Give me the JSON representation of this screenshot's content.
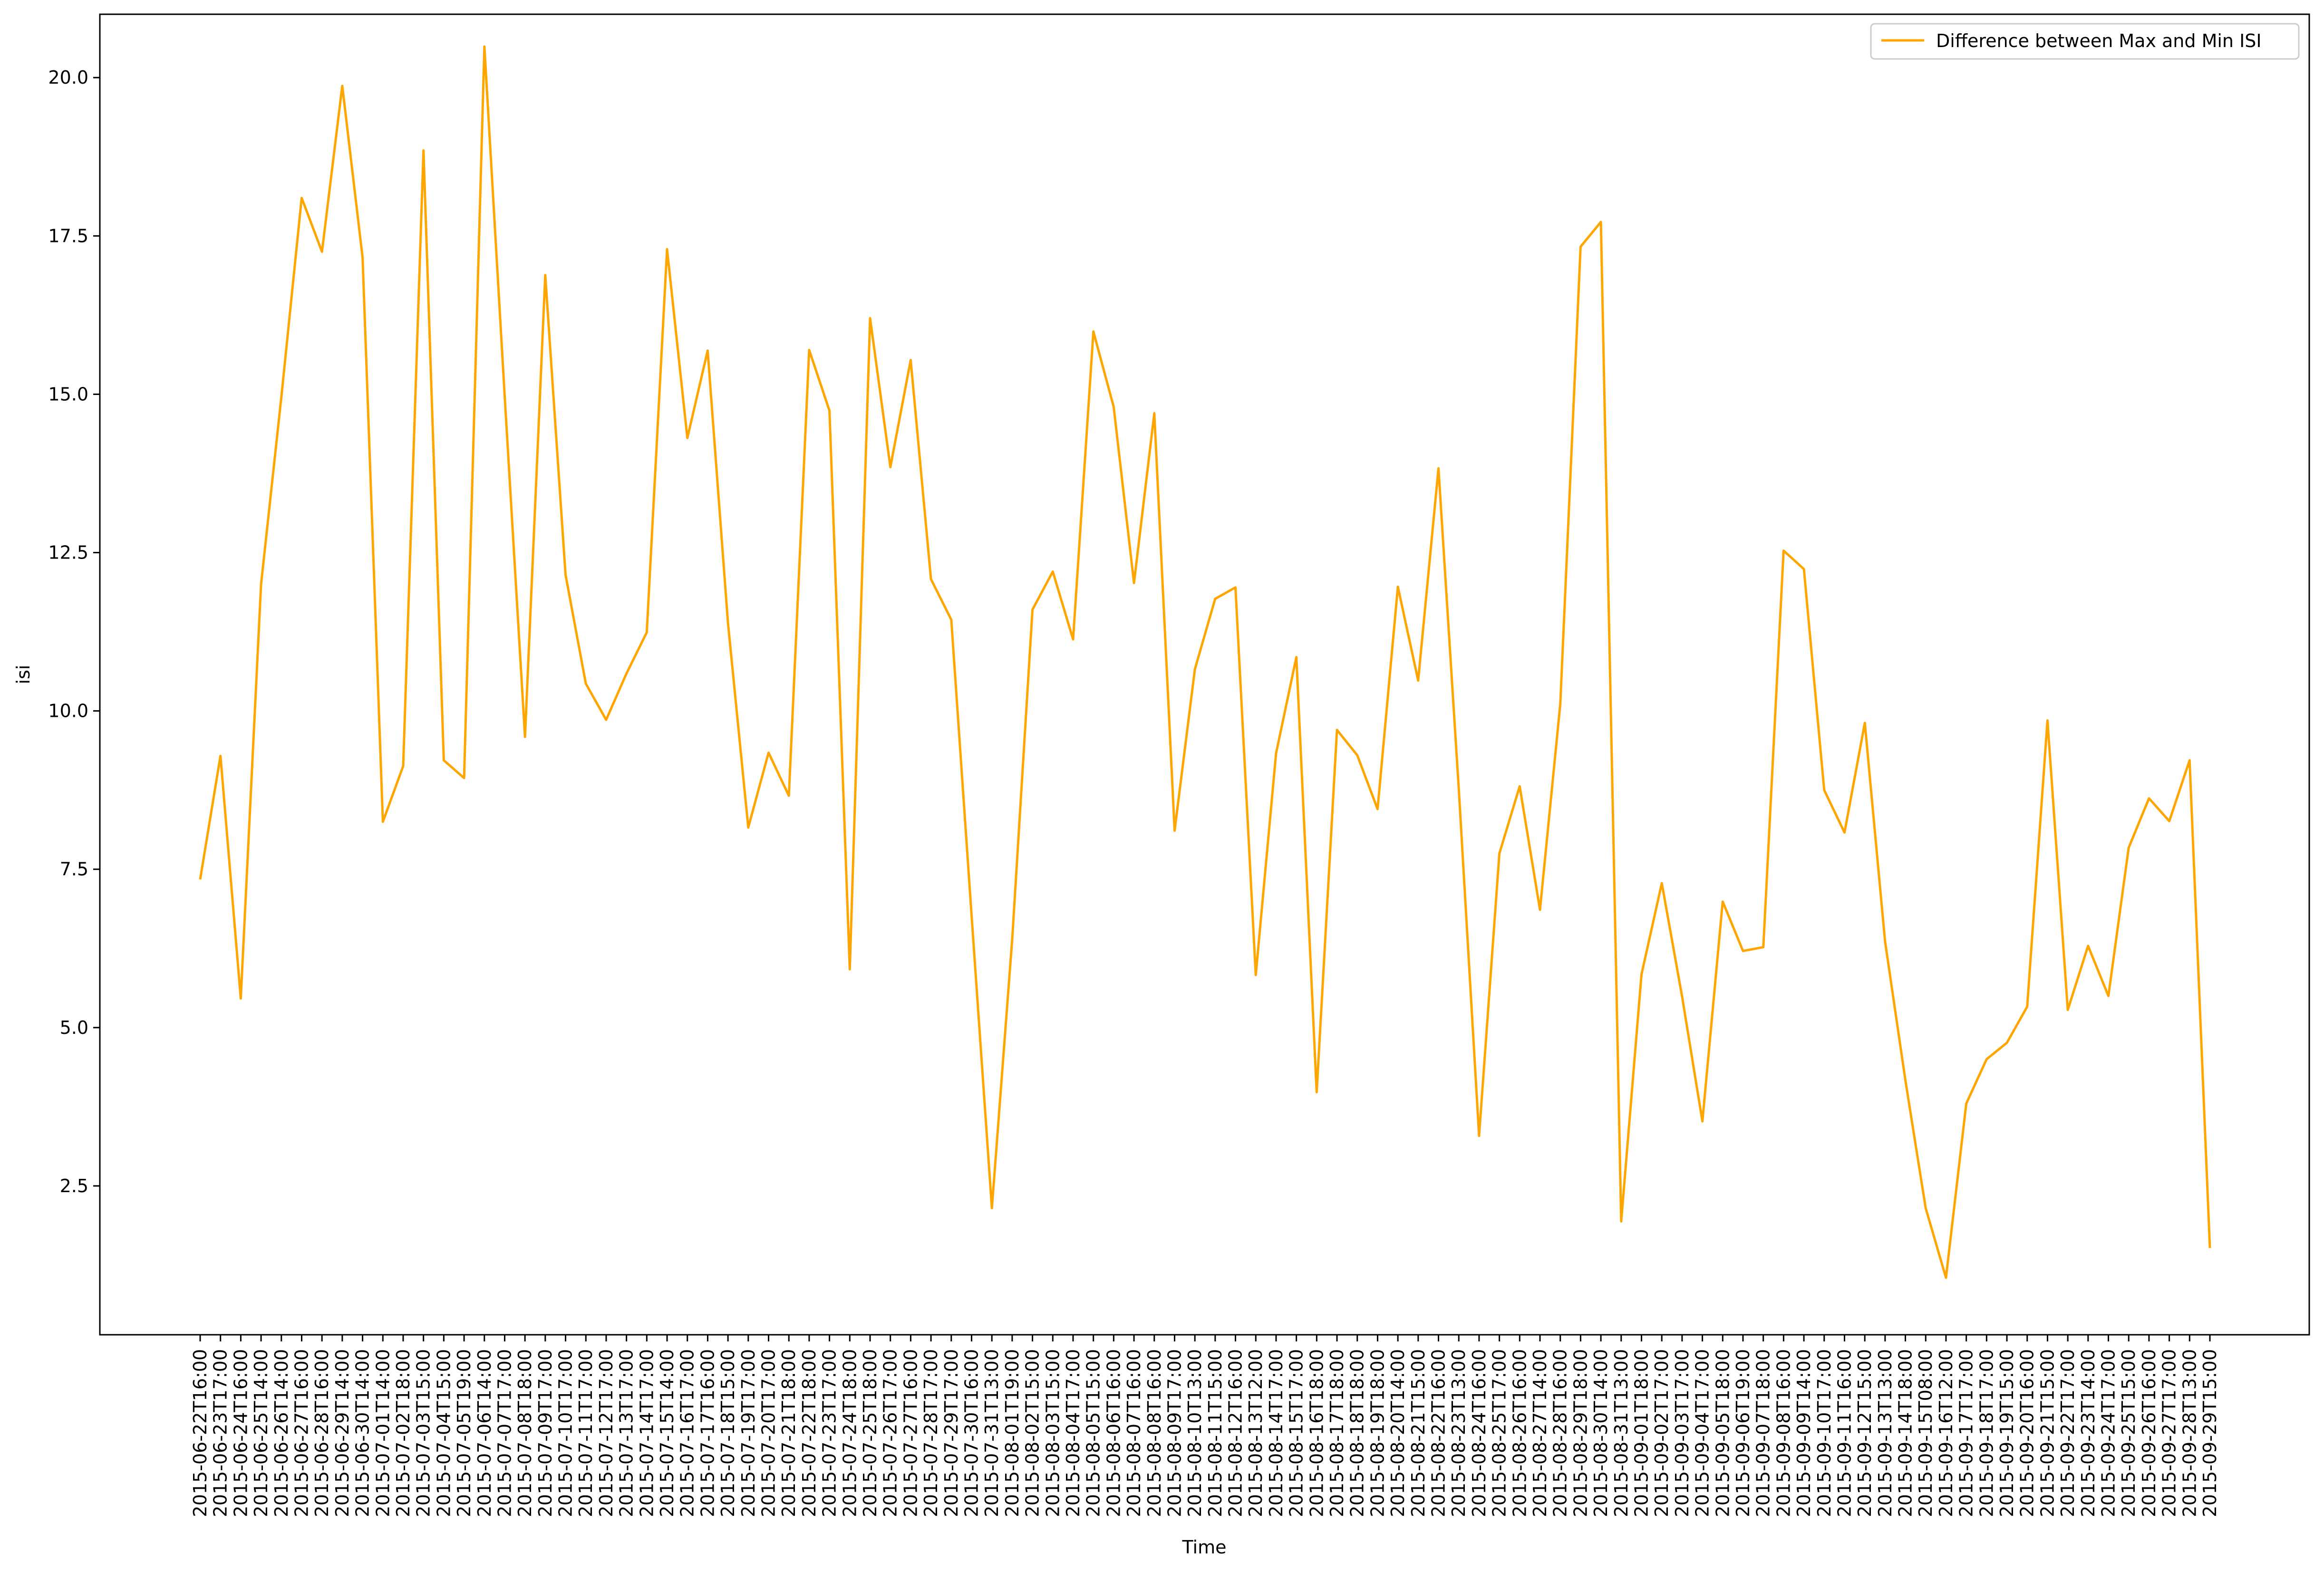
{
  "chart_data": {
    "type": "line",
    "xlabel": "Time",
    "ylabel": "isi",
    "ylim": [
      0.15,
      21.0
    ],
    "yticks": [
      2.5,
      5.0,
      7.5,
      10.0,
      12.5,
      15.0,
      17.5,
      20.0
    ],
    "ytick_labels": [
      "2.5",
      "5.0",
      "7.5",
      "10.0",
      "12.5",
      "15.0",
      "17.5",
      "20.0"
    ],
    "grid": false,
    "legend_position": "top-right",
    "series": [
      {
        "name": "Difference between Max and Min ISI",
        "color": "#ffa500",
        "values": [
          7.34,
          9.29,
          5.46,
          12.0,
          14.96,
          18.1,
          17.25,
          19.87,
          17.16,
          8.25,
          9.13,
          18.85,
          9.22,
          8.94,
          20.49,
          14.97,
          9.59,
          16.88,
          12.15,
          10.43,
          9.86,
          10.59,
          11.24,
          17.29,
          14.31,
          15.69,
          11.39,
          8.16,
          9.34,
          8.66,
          15.7,
          14.74,
          5.92,
          16.2,
          13.85,
          15.54,
          12.08,
          11.44,
          6.77,
          2.15,
          6.39,
          11.6,
          12.2,
          11.13,
          15.99,
          14.8,
          12.02,
          14.7,
          8.11,
          10.66,
          11.77,
          11.95,
          5.83,
          9.33,
          10.85,
          3.98,
          9.7,
          9.3,
          8.45,
          11.96,
          10.48,
          13.83,
          8.77,
          3.29,
          7.75,
          8.81,
          6.86,
          10.11,
          17.33,
          17.72,
          1.94,
          5.84,
          7.28,
          5.49,
          3.52,
          6.99,
          6.21,
          6.27,
          12.53,
          12.24,
          8.75,
          8.08,
          9.81,
          6.36,
          4.17,
          2.15,
          1.05,
          3.8,
          4.5,
          4.76,
          5.33,
          9.85,
          5.28,
          6.29,
          5.5,
          7.84,
          8.62,
          8.26,
          9.22,
          1.52
        ]
      }
    ],
    "categories": [
      "2015-06-22T16:00",
      "2015-06-23T17:00",
      "2015-06-24T16:00",
      "2015-06-25T14:00",
      "2015-06-26T14:00",
      "2015-06-27T16:00",
      "2015-06-28T16:00",
      "2015-06-29T14:00",
      "2015-06-30T14:00",
      "2015-07-01T14:00",
      "2015-07-02T18:00",
      "2015-07-03T15:00",
      "2015-07-04T15:00",
      "2015-07-05T19:00",
      "2015-07-06T14:00",
      "2015-07-07T17:00",
      "2015-07-08T18:00",
      "2015-07-09T17:00",
      "2015-07-10T17:00",
      "2015-07-11T17:00",
      "2015-07-12T17:00",
      "2015-07-13T17:00",
      "2015-07-14T17:00",
      "2015-07-15T14:00",
      "2015-07-16T17:00",
      "2015-07-17T16:00",
      "2015-07-18T15:00",
      "2015-07-19T17:00",
      "2015-07-20T17:00",
      "2015-07-21T18:00",
      "2015-07-22T18:00",
      "2015-07-23T17:00",
      "2015-07-24T18:00",
      "2015-07-25T18:00",
      "2015-07-26T17:00",
      "2015-07-27T16:00",
      "2015-07-28T17:00",
      "2015-07-29T17:00",
      "2015-07-30T16:00",
      "2015-07-31T13:00",
      "2015-08-01T19:00",
      "2015-08-02T15:00",
      "2015-08-03T15:00",
      "2015-08-04T17:00",
      "2015-08-05T15:00",
      "2015-08-06T16:00",
      "2015-08-07T16:00",
      "2015-08-08T16:00",
      "2015-08-09T17:00",
      "2015-08-10T13:00",
      "2015-08-11T15:00",
      "2015-08-12T16:00",
      "2015-08-13T12:00",
      "2015-08-14T17:00",
      "2015-08-15T17:00",
      "2015-08-16T18:00",
      "2015-08-17T18:00",
      "2015-08-18T18:00",
      "2015-08-19T18:00",
      "2015-08-20T14:00",
      "2015-08-21T15:00",
      "2015-08-22T16:00",
      "2015-08-23T13:00",
      "2015-08-24T16:00",
      "2015-08-25T17:00",
      "2015-08-26T16:00",
      "2015-08-27T14:00",
      "2015-08-28T16:00",
      "2015-08-29T18:00",
      "2015-08-30T14:00",
      "2015-08-31T13:00",
      "2015-09-01T18:00",
      "2015-09-02T17:00",
      "2015-09-03T17:00",
      "2015-09-04T17:00",
      "2015-09-05T18:00",
      "2015-09-06T19:00",
      "2015-09-07T18:00",
      "2015-09-08T16:00",
      "2015-09-09T14:00",
      "2015-09-10T17:00",
      "2015-09-11T16:00",
      "2015-09-12T15:00",
      "2015-09-13T13:00",
      "2015-09-14T18:00",
      "2015-09-15T08:00",
      "2015-09-16T12:00",
      "2015-09-17T17:00",
      "2015-09-18T17:00",
      "2015-09-19T15:00",
      "2015-09-20T16:00",
      "2015-09-21T15:00",
      "2015-09-22T17:00",
      "2015-09-23T14:00",
      "2015-09-24T17:00",
      "2015-09-25T15:00",
      "2015-09-26T16:00",
      "2015-09-27T17:00",
      "2015-09-28T13:00",
      "2015-09-29T15:00"
    ]
  }
}
